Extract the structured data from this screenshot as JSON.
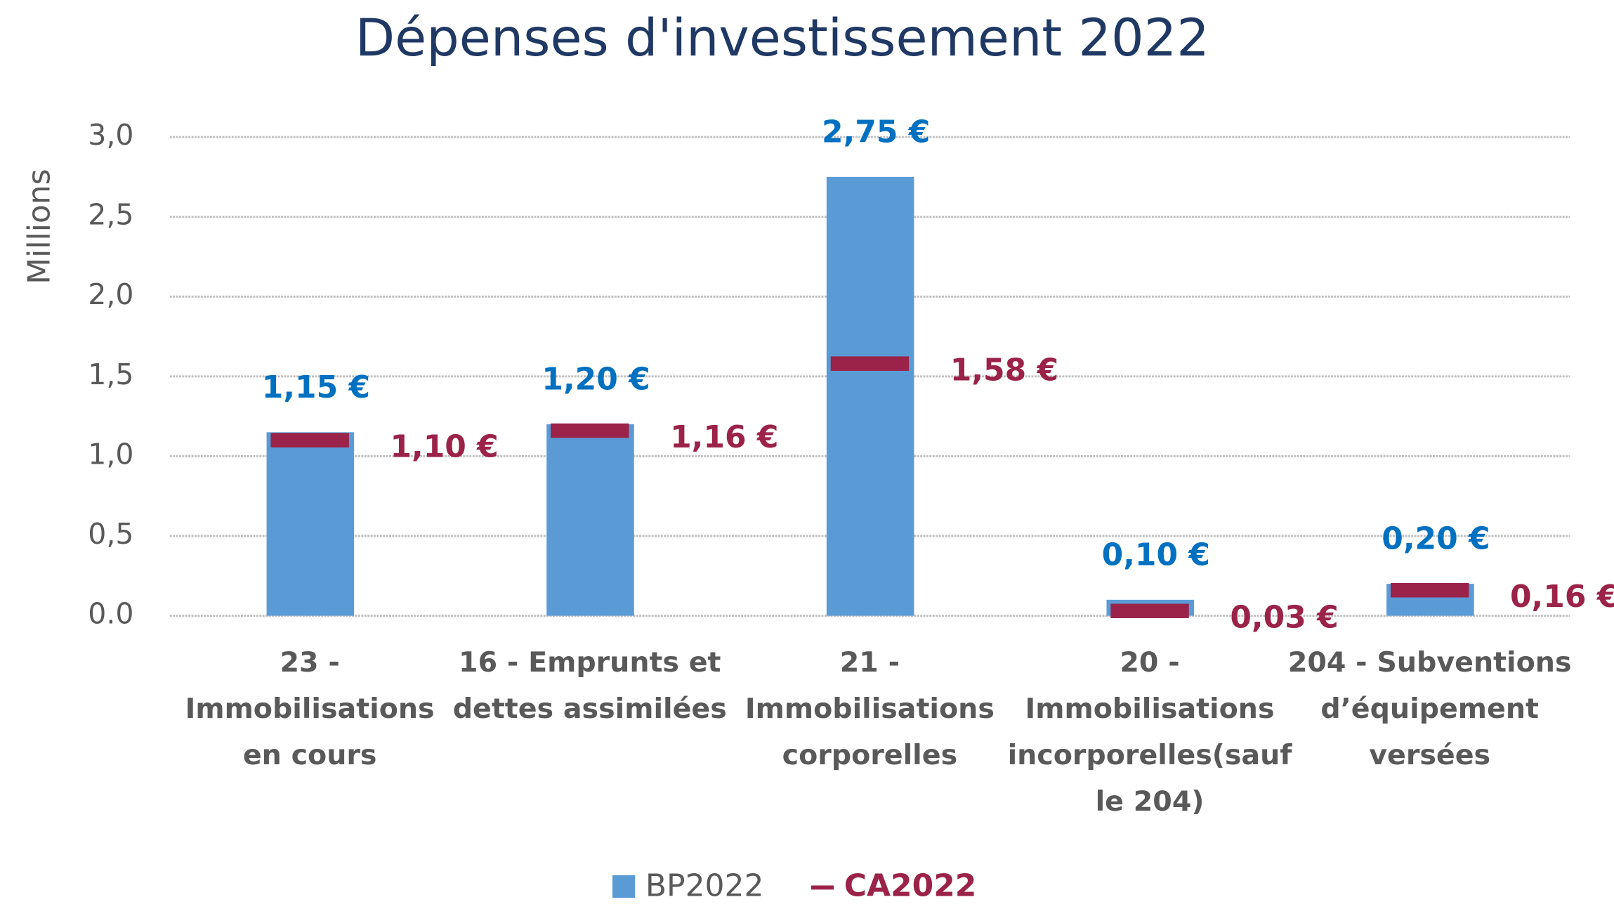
{
  "chart_data": {
    "type": "bar",
    "title": "Dépenses d'investissement 2022",
    "y_label": "Millions",
    "categories": [
      [
        "23 -",
        "Immobilisations",
        "en cours"
      ],
      [
        "16 - Emprunts et",
        "dettes assimilées"
      ],
      [
        "21 -",
        "Immobilisations",
        "corporelles"
      ],
      [
        "20 -",
        "Immobilisations",
        "incorporelles(sauf",
        "le 204)"
      ],
      [
        "204 - Subventions",
        "d’équipement",
        "versées"
      ]
    ],
    "series": [
      {
        "name": "BP2022",
        "color": "#5b9bd5",
        "label_color": "#0070c0",
        "values": [
          1.15,
          1.2,
          2.75,
          0.1,
          0.2
        ],
        "value_labels": [
          "1,15 €",
          "1,20 €",
          "2,75 €",
          "0,10 €",
          "0,20 €"
        ]
      },
      {
        "name": "CA2022",
        "color": "#9b2248",
        "label_color": "#9b2248",
        "values": [
          1.1,
          1.16,
          1.58,
          0.03,
          0.16
        ],
        "value_labels": [
          "1,10 €",
          "1,16 €",
          "1,58 €",
          "0,03 €",
          "0,16 €"
        ]
      }
    ],
    "ylim": [
      0,
      3
    ],
    "yticks": [
      {
        "value": 0,
        "label": "0.0"
      },
      {
        "value": 0.5,
        "label": "0,5"
      },
      {
        "value": 1,
        "label": "1,0"
      },
      {
        "value": 1.5,
        "label": "1,5"
      },
      {
        "value": 2,
        "label": "2,0"
      },
      {
        "value": 2.5,
        "label": "2,5"
      },
      {
        "value": 3,
        "label": "3,0"
      }
    ],
    "grid": true
  }
}
